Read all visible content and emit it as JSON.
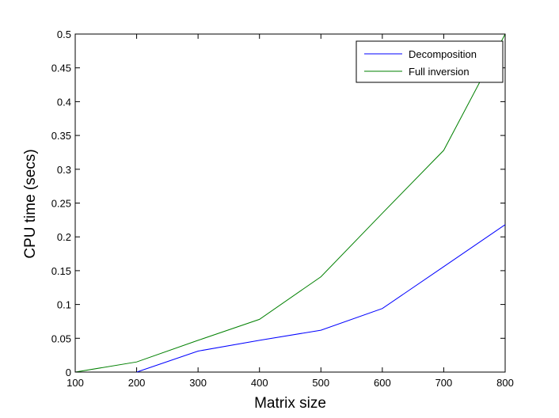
{
  "chart_data": {
    "type": "line",
    "xlabel": "Matrix size",
    "ylabel": "CPU time (secs)",
    "xlim": [
      100,
      800
    ],
    "ylim": [
      0,
      0.5
    ],
    "x_ticks": [
      100,
      200,
      300,
      400,
      500,
      600,
      700,
      800
    ],
    "y_ticks": [
      0,
      0.05,
      0.1,
      0.15,
      0.2,
      0.25,
      0.3,
      0.35,
      0.4,
      0.45,
      0.5
    ],
    "x_tick_labels": [
      "100",
      "200",
      "300",
      "400",
      "500",
      "600",
      "700",
      "800"
    ],
    "y_tick_labels": [
      "0",
      "0.05",
      "0.1",
      "0.15",
      "0.2",
      "0.25",
      "0.3",
      "0.35",
      "0.4",
      "0.45",
      "0.5"
    ],
    "grid": false,
    "legend_position": "top-right",
    "series": [
      {
        "name": "Decomposition",
        "color": "#0000ff",
        "x": [
          200,
          300,
          400,
          500,
          600,
          700,
          800
        ],
        "y": [
          0,
          0.031,
          0.047,
          0.062,
          0.094,
          0.156,
          0.218
        ]
      },
      {
        "name": "Full inversion",
        "color": "#008000",
        "x": [
          100,
          200,
          300,
          400,
          500,
          600,
          700,
          800
        ],
        "y": [
          0,
          0.015,
          0.047,
          0.078,
          0.141,
          0.235,
          0.328,
          0.5
        ]
      }
    ]
  }
}
